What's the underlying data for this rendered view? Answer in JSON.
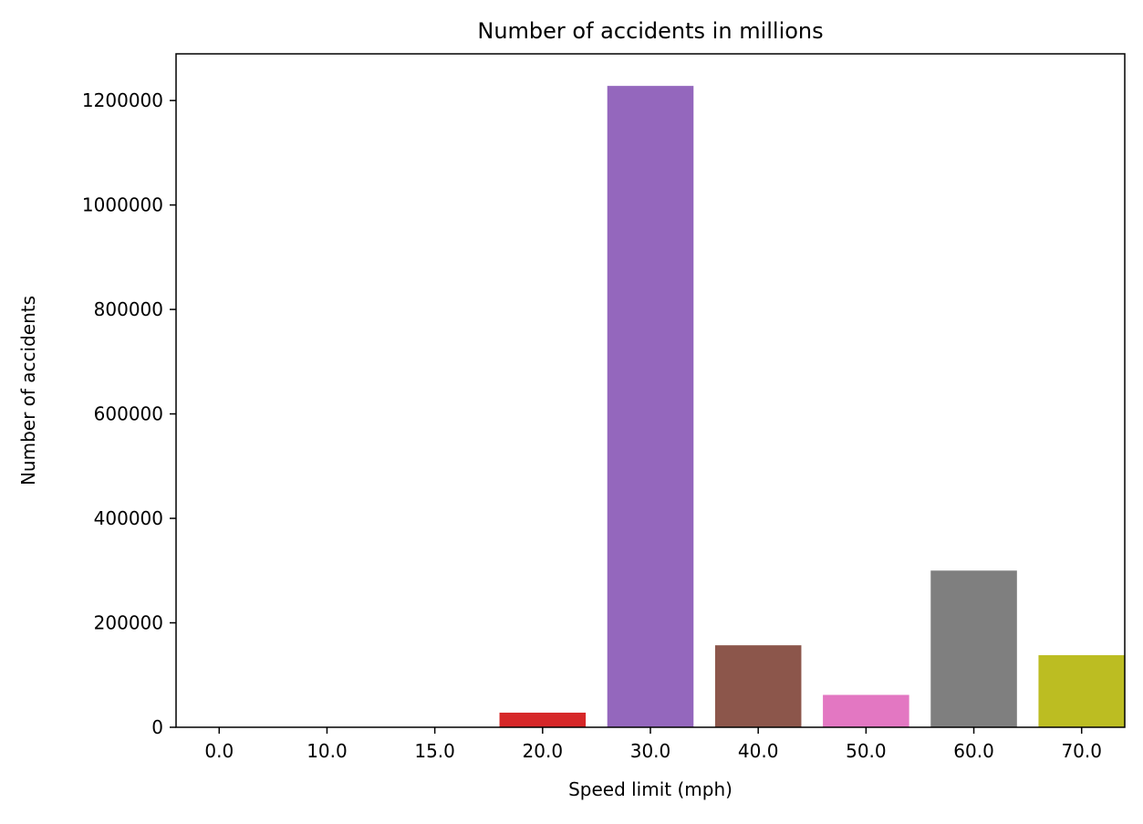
{
  "chart_data": {
    "type": "bar",
    "title": "Number of accidents in millions",
    "xlabel": "Speed limit (mph)",
    "ylabel": "Number of accidents",
    "categories": [
      "0.0",
      "10.0",
      "15.0",
      "20.0",
      "30.0",
      "40.0",
      "50.0",
      "60.0",
      "70.0"
    ],
    "values": [
      40,
      10,
      60,
      28000,
      1228000,
      157000,
      62000,
      300000,
      138000
    ],
    "colors": [
      "#1f77b4",
      "#ff7f0e",
      "#2ca02c",
      "#d62728",
      "#9467bd",
      "#8c564b",
      "#e377c2",
      "#7f7f7f",
      "#bcbd22"
    ],
    "yticks": [
      0,
      200000,
      400000,
      600000,
      800000,
      1000000,
      1200000
    ],
    "ylim": [
      0,
      1289400
    ],
    "grid": false,
    "legend": false
  }
}
